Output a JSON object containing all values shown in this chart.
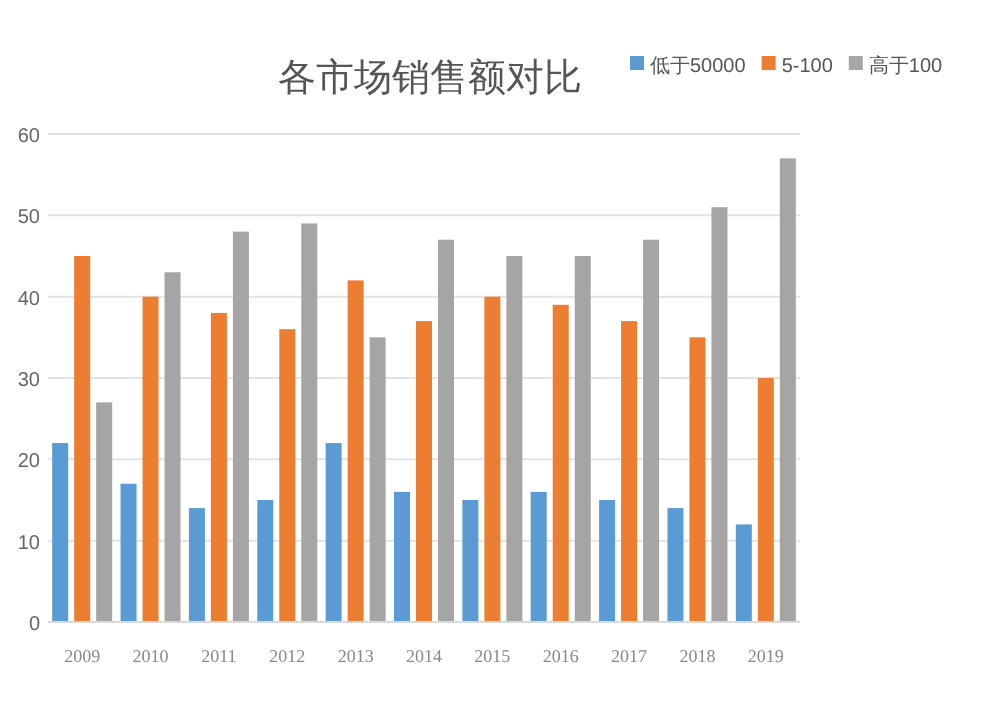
{
  "chart_data": {
    "type": "bar",
    "title": "各市场销售额对比",
    "categories": [
      "2009",
      "2010",
      "2011",
      "2012",
      "2013",
      "2014",
      "2015",
      "2016",
      "2017",
      "2018",
      "2019"
    ],
    "series": [
      {
        "name": "低于50000",
        "color": "#5b9bd5",
        "values": [
          22,
          17,
          14,
          15,
          22,
          16,
          15,
          16,
          15,
          14,
          12
        ]
      },
      {
        "name": "5-100",
        "color": "#ed7d31",
        "values": [
          45,
          40,
          38,
          36,
          42,
          37,
          40,
          39,
          37,
          35,
          30
        ]
      },
      {
        "name": "高于100",
        "color": "#a5a5a5",
        "values": [
          27,
          43,
          48,
          49,
          35,
          47,
          45,
          45,
          47,
          51,
          57
        ]
      }
    ],
    "ylim": [
      0,
      60
    ],
    "yticks": [
      0,
      10,
      20,
      30,
      40,
      50,
      60
    ],
    "grid": "y",
    "legend": "top right"
  }
}
